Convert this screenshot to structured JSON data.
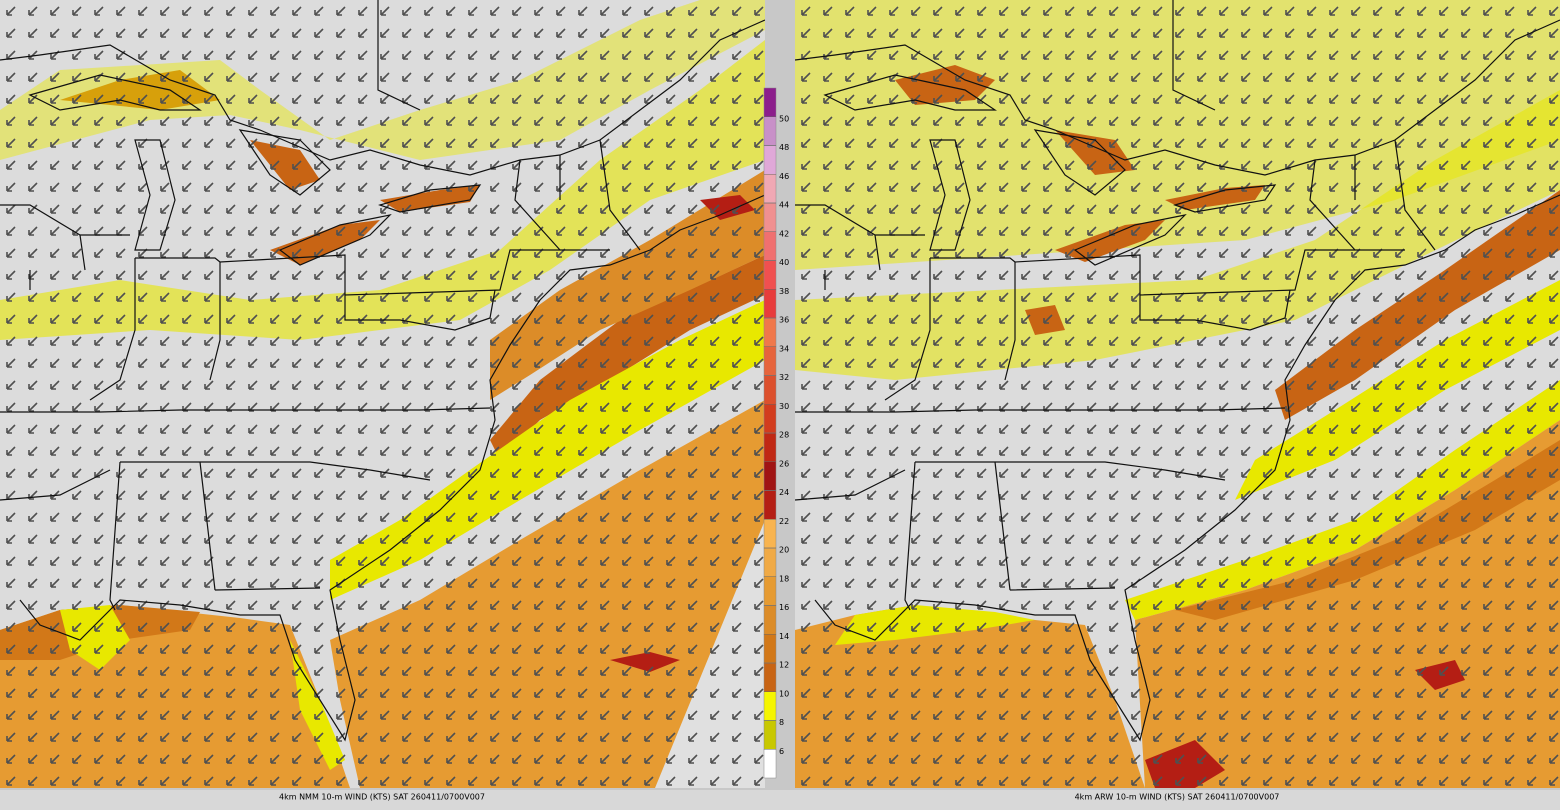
{
  "captions": [
    "4km NMM 10-m WIND (KTS) SAT 260411/0700V007",
    "4km ARW 10-m WIND (KTS) SAT 260411/0700V007"
  ],
  "colorbar": {
    "labels": [
      6,
      8,
      10,
      12,
      14,
      16,
      18,
      20,
      22,
      24,
      26,
      28,
      30,
      32,
      34,
      36,
      38,
      40,
      42,
      44,
      46,
      48,
      50
    ],
    "colors": [
      "#ffffff",
      "#c8c800",
      "#f5f500",
      "#c86414",
      "#d27818",
      "#dc8c28",
      "#e69b32",
      "#f0aa46",
      "#f8b450",
      "#b41e14",
      "#a01414",
      "#c02814",
      "#d23c1e",
      "#dc502d",
      "#e6643c",
      "#f0784b",
      "#e83c3c",
      "#f05050",
      "#f07070",
      "#f09090",
      "#f0a8b4",
      "#e0a8d8",
      "#c890c8",
      "#8c1e8c"
    ]
  }
}
